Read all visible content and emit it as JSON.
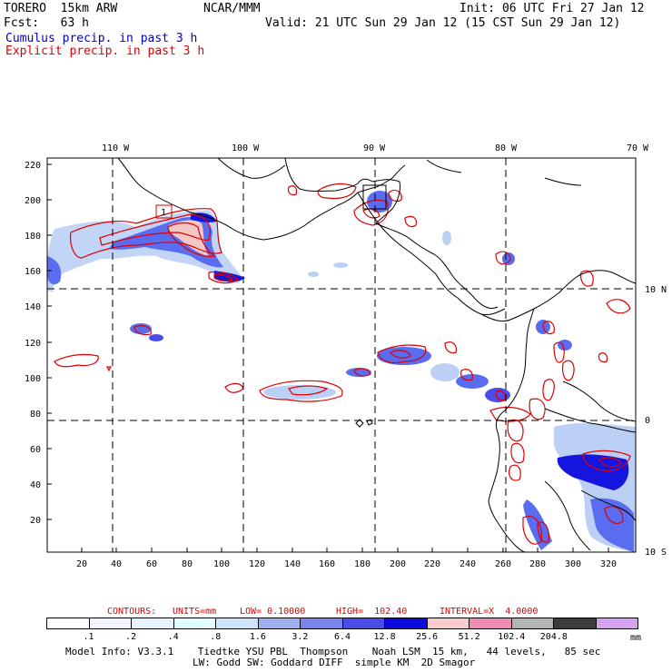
{
  "header": {
    "model": "TORERO  15km ARW",
    "org": "NCAR/MMM",
    "init": "Init: 06 UTC Fri 27 Jan 12",
    "fcst": "Fcst:   63 h",
    "valid": "Valid: 21 UTC Sun 29 Jan 12 (15 CST Sun 29 Jan 12)",
    "field1": "Cumulus precip. in past 3 h",
    "field2": "Explicit precip. in past 3 h"
  },
  "map": {
    "top_lon_labels": [
      "110 W",
      "100 W",
      "90 W",
      "80 W",
      "70 W"
    ],
    "right_lat_labels": [
      "10 N",
      "0",
      "10 S"
    ],
    "left_ticks": [
      "220",
      "200",
      "180",
      "160",
      "140",
      "120",
      "100",
      "80",
      "60",
      "40",
      "20"
    ],
    "bottom_ticks": [
      "20",
      "40",
      "60",
      "80",
      "100",
      "120",
      "140",
      "160",
      "180",
      "200",
      "220",
      "240",
      "260",
      "280",
      "300",
      "320"
    ],
    "box_label": "1",
    "colors": {
      "coast": "#000000",
      "contour": "#e00000",
      "fill_light": "#bcd0f5",
      "fill_mid": "#5a6cf0",
      "fill_dark": "#1515e0",
      "fill_pink": "#f4c7c7"
    }
  },
  "contours_legend": {
    "label": "CONTOURS:",
    "units": "UNITS=mm",
    "low": "LOW= 0.10000",
    "high": "HIGH=  102.40",
    "interval": "INTERVAL=X  4.0000"
  },
  "colorbar": {
    "colors": [
      "#ffffff",
      "#f4f4ff",
      "#e6f2ff",
      "#e0ffff",
      "#cde4fb",
      "#9eb0f0",
      "#7b84ee",
      "#4c4ce8",
      "#0c0ce0",
      "#f8cccc",
      "#f08cb4",
      "#b4b4b4",
      "#3c3c3c",
      "#d8a0f0"
    ],
    "labels": [
      ".1",
      ".2",
      ".4",
      ".8",
      "1.6",
      "3.2",
      "6.4",
      "12.8",
      "25.6",
      "51.2",
      "102.4",
      "204.8"
    ],
    "unit": "mm"
  },
  "footer": {
    "line1": "Model Info: V3.3.1    Tiedtke YSU PBL  Thompson    Noah LSM  15 km,   44 levels,   85 sec",
    "line2": "LW: Godd SW: Goddard DIFF  simple KM  2D Smagor"
  }
}
